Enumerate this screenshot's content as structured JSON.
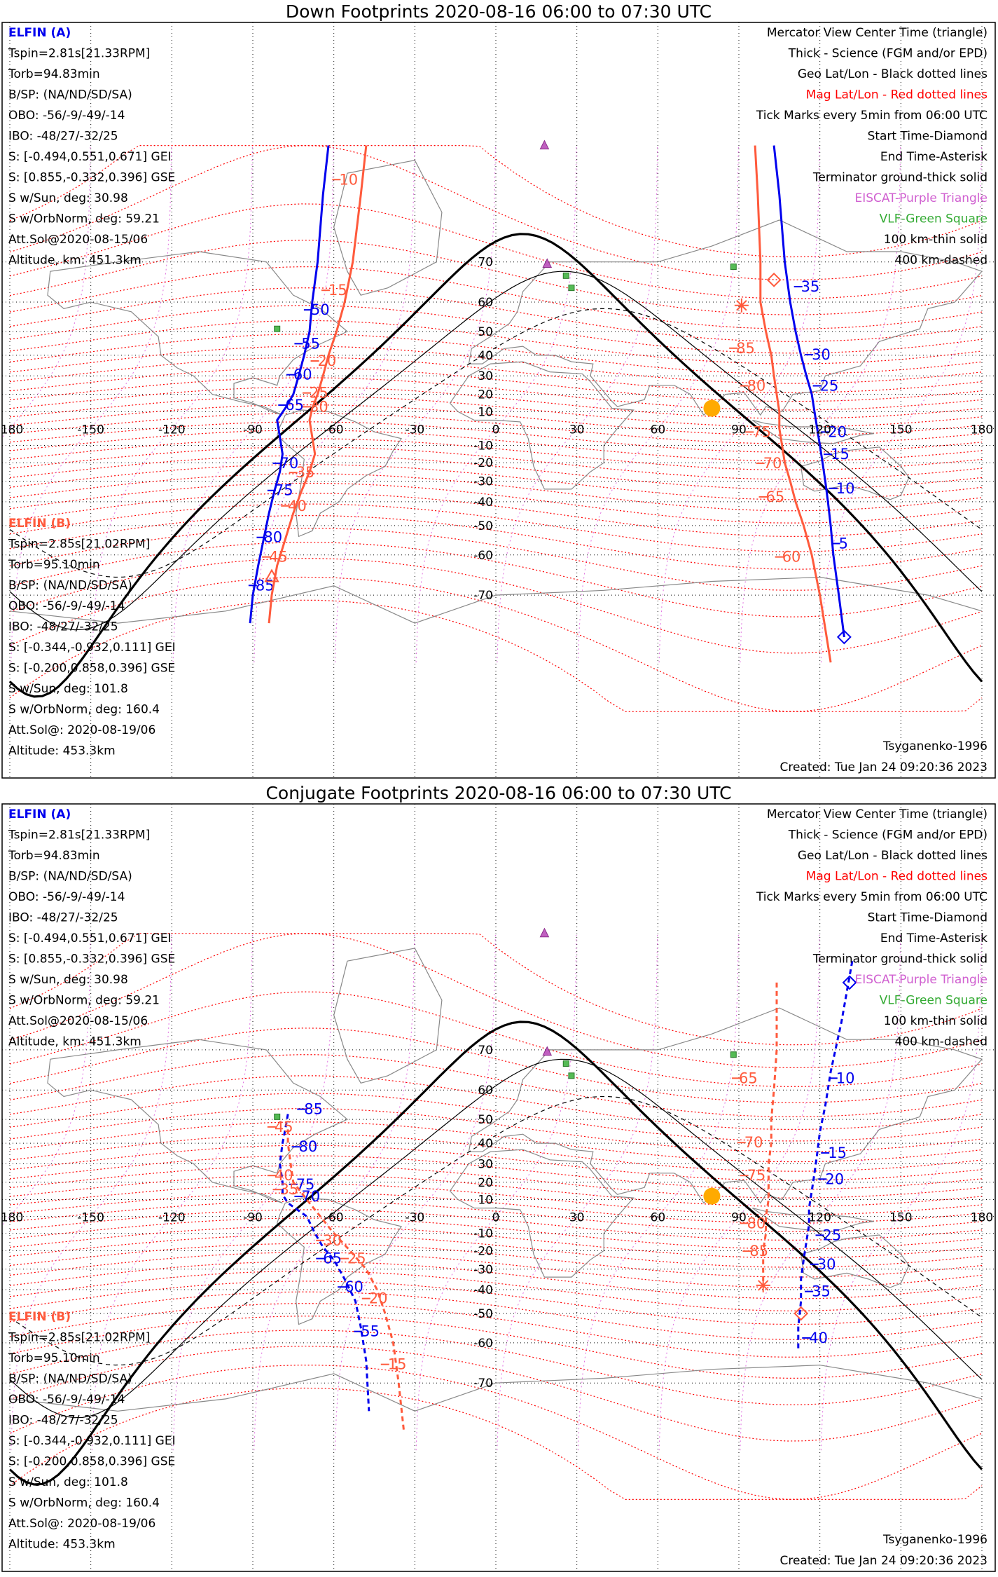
{
  "colors": {
    "elfin_a": "#0000ee",
    "elfin_b": "#ff5a3c",
    "mag_grid": "#ff0000",
    "geo_grid": "#000000",
    "eiscat": "#c060c0",
    "vlf": "#33aa33",
    "vlf_fill": "#55bb55",
    "sun": "#ffaa00",
    "coast": "#888888",
    "terminator": "#000000"
  },
  "legend": {
    "line1": "Mercator View Center Time (triangle)",
    "line2": "Thick - Science (FGM and/or EPD)",
    "line3": "Geo Lat/Lon - Black dotted lines",
    "line4": "Mag Lat/Lon - Red dotted lines",
    "line5": "Tick Marks every 5min from 06:00 UTC",
    "line6": "Start Time-Diamond",
    "line7": "End Time-Asterisk",
    "line8": "Terminator ground-thick solid",
    "line9": "EISCAT-Purple Triangle",
    "line10": "VLF-Green Square",
    "line11": "100 km-thin solid",
    "line12": "400 km-dashed"
  },
  "elfin_a": {
    "name": "ELFIN (A)",
    "tspin": "Tspin=2.81s[21.33RPM]",
    "torb": "Torb=94.83min",
    "bsp": "B/SP: (NA/ND/SD/SA)",
    "obo": "OBO: -56/-9/-49/-14",
    "ibo": "IBO: -48/27/-32/25",
    "s_gei": "S: [-0.494,0.551,0.671] GEI",
    "s_gse": "S: [0.855,-0.332,0.396] GSE",
    "s_sun": "S w/Sun, deg: 30.98",
    "s_orb": "S w/OrbNorm, deg: 59.21",
    "att": "Att.Sol@2020-08-15/06",
    "alt": "Altitude, km: 451.3km"
  },
  "elfin_b": {
    "name": "ELFIN (B)",
    "tspin": "Tspin=2.85s[21.02RPM]",
    "torb": "Torb=95.10min",
    "bsp": "B/SP: (NA/ND/SD/SA)",
    "obo": "OBO: -56/-9/-49/-14",
    "ibo": "IBO: -48/27/-32/25",
    "s_gei": "S: [-0.344,-0.932,0.111] GEI",
    "s_gse": "S: [-0.200,0.858,0.396] GSE",
    "s_sun": "S w/Sun, deg: 101.8",
    "s_orb": "S w/OrbNorm, deg: 160.4",
    "att": "Att.Sol@: 2020-08-19/06",
    "alt": "Altitude: 453.3km"
  },
  "footer": {
    "model": "Tsyganenko-1996",
    "created": "Created: Tue Jan 24 09:20:36 2023"
  },
  "axes": {
    "lon_ticks": [
      -180,
      -150,
      -120,
      -90,
      -60,
      -30,
      0,
      30,
      60,
      90,
      120,
      150,
      180
    ],
    "lat_ticks": [
      70,
      60,
      50,
      40,
      30,
      20,
      10,
      -10,
      -20,
      -30,
      -40,
      -50,
      -60,
      -70
    ],
    "lon_labels": [
      "-180",
      "-150",
      "-120",
      "-90",
      "-60",
      "-30",
      "0",
      "30",
      "60",
      "90",
      "120",
      "150",
      "180"
    ],
    "lat_labels": [
      "70",
      "60",
      "50",
      "40",
      "30",
      "20",
      "10",
      "-10",
      "-20",
      "-30",
      "-40",
      "-50",
      "-60",
      "-70"
    ]
  },
  "sun": {
    "lon": 80,
    "lat": 12
  },
  "eiscat": [
    {
      "lon": 19,
      "lat": 69.6
    },
    {
      "lon": 18,
      "lat": 90
    }
  ],
  "vlf": [
    {
      "lon": 26,
      "lat": 67
    },
    {
      "lon": 28,
      "lat": 64
    },
    {
      "lon": 88,
      "lat": 69
    },
    {
      "lon": -81,
      "lat": 51
    }
  ],
  "panels": [
    {
      "title": "Down Footprints 2020-08-16 06:00 to 07:30 UTC",
      "track_a": {
        "points": [
          [
            -62,
            86
          ],
          [
            -64,
            80
          ],
          [
            -66,
            70
          ],
          [
            -68,
            60
          ],
          [
            -69,
            50
          ],
          [
            -71,
            40
          ],
          [
            -73,
            30
          ],
          [
            -75,
            20
          ],
          [
            -78,
            12
          ],
          [
            -81,
            5
          ],
          [
            -80,
            -5
          ],
          [
            -79,
            -15
          ],
          [
            -80,
            -25
          ],
          [
            -82,
            -35
          ],
          [
            -84,
            -45
          ],
          [
            -86,
            -55
          ],
          [
            -88,
            -63
          ],
          [
            -90,
            -70
          ],
          [
            -91,
            -75
          ]
        ],
        "labels": [
          {
            "text": "50",
            "lon": -68.5,
            "lat": 56
          },
          {
            "text": "55",
            "lon": -72,
            "lat": 43
          },
          {
            "text": "60",
            "lon": -75,
            "lat": 28
          },
          {
            "text": "65",
            "lon": -78,
            "lat": 11
          },
          {
            "text": "70",
            "lon": -80,
            "lat": -23
          },
          {
            "text": "75",
            "lon": -82,
            "lat": -37
          },
          {
            "text": "80",
            "lon": -86,
            "lat": -56
          },
          {
            "text": "85",
            "lon": -89,
            "lat": -69
          }
        ]
      },
      "track_b": {
        "points": [
          [
            -48,
            86
          ],
          [
            -50,
            80
          ],
          [
            -53,
            70
          ],
          [
            -56,
            60
          ],
          [
            -59,
            50
          ],
          [
            -62,
            40
          ],
          [
            -64,
            30
          ],
          [
            -66,
            20
          ],
          [
            -68,
            12
          ],
          [
            -69,
            5
          ],
          [
            -68,
            -5
          ],
          [
            -67,
            -15
          ],
          [
            -69,
            -25
          ],
          [
            -72,
            -35
          ],
          [
            -75,
            -45
          ],
          [
            -78,
            -55
          ],
          [
            -81,
            -63
          ],
          [
            -83,
            -70
          ],
          [
            -84,
            -75
          ]
        ],
        "labels": [
          {
            "text": "10",
            "lon": -58,
            "lat": 81
          },
          {
            "text": "15",
            "lon": -62,
            "lat": 62
          },
          {
            "text": "20",
            "lon": -66,
            "lat": 35
          },
          {
            "text": "25",
            "lon": -69,
            "lat": 18
          },
          {
            "text": "30",
            "lon": -69,
            "lat": 10
          },
          {
            "text": "35",
            "lon": -74,
            "lat": -28
          },
          {
            "text": "40",
            "lon": -77,
            "lat": -44
          },
          {
            "text": "45",
            "lon": -84,
            "lat": -62
          }
        ]
      },
      "track_c": {
        "points": [
          [
            103,
            86
          ],
          [
            105,
            80
          ],
          [
            107,
            70
          ],
          [
            109,
            60
          ],
          [
            111,
            50
          ],
          [
            113,
            40
          ],
          [
            115,
            30
          ],
          [
            117,
            20
          ],
          [
            118,
            10
          ],
          [
            119,
            0
          ],
          [
            120,
            -10
          ],
          [
            121,
            -20
          ],
          [
            122,
            -30
          ],
          [
            123,
            -40
          ],
          [
            124,
            -50
          ],
          [
            125,
            -60
          ],
          [
            127,
            -70
          ],
          [
            129,
            -77
          ]
        ],
        "labels": [
          {
            "text": "35",
            "lon": 113,
            "lat": 63
          },
          {
            "text": "30",
            "lon": 117,
            "lat": 38
          },
          {
            "text": "25",
            "lon": 120,
            "lat": 22
          },
          {
            "text": "20",
            "lon": 123,
            "lat": -5
          },
          {
            "text": "15",
            "lon": 124,
            "lat": -18
          },
          {
            "text": "10",
            "lon": 126,
            "lat": -36
          },
          {
            "text": "5",
            "lon": 127,
            "lat": -58
          }
        ]
      },
      "track_d": {
        "points": [
          [
            96,
            86
          ],
          [
            97,
            80
          ],
          [
            98,
            70
          ],
          [
            98,
            60
          ],
          [
            100,
            50
          ],
          [
            102,
            40
          ],
          [
            103,
            30
          ],
          [
            104,
            20
          ],
          [
            105,
            10
          ],
          [
            105,
            0
          ],
          [
            106,
            -10
          ],
          [
            107,
            -20
          ],
          [
            109,
            -30
          ],
          [
            111,
            -40
          ],
          [
            114,
            -50
          ],
          [
            117,
            -60
          ],
          [
            120,
            -70
          ],
          [
            124,
            -80
          ]
        ],
        "labels": [
          {
            "text": "85",
            "lon": 89,
            "lat": 41
          },
          {
            "text": "80",
            "lon": 93,
            "lat": 22
          },
          {
            "text": "75",
            "lon": 95,
            "lat": -5
          },
          {
            "text": "70",
            "lon": 99,
            "lat": -23
          },
          {
            "text": "65",
            "lon": 100,
            "lat": -40
          },
          {
            "text": "60",
            "lon": 106,
            "lat": -62
          }
        ]
      },
      "dashed": false
    },
    {
      "title": "Conjugate Footprints 2020-08-16 06:00 to 07:30 UTC",
      "track_a": {
        "points": [
          [
            -77,
            52
          ],
          [
            -78,
            46
          ],
          [
            -79,
            40
          ],
          [
            -80,
            30
          ],
          [
            -79,
            20
          ],
          [
            -79,
            13
          ],
          [
            -77,
            8
          ],
          [
            -70,
            0
          ],
          [
            -67,
            -10
          ],
          [
            -64,
            -18
          ],
          [
            -60,
            -25
          ],
          [
            -56,
            -35
          ],
          [
            -52,
            -45
          ],
          [
            -50,
            -55
          ],
          [
            -48,
            -65
          ],
          [
            -47,
            -75
          ]
        ],
        "labels": [
          {
            "text": "85",
            "lon": -71,
            "lat": 52
          },
          {
            "text": "80",
            "lon": -73,
            "lat": 36
          },
          {
            "text": "75",
            "lon": -74,
            "lat": 16
          },
          {
            "text": "70",
            "lon": -72,
            "lat": 9
          },
          {
            "text": "65",
            "lon": -64,
            "lat": -27
          },
          {
            "text": "60",
            "lon": -56,
            "lat": -41
          },
          {
            "text": "55",
            "lon": -50,
            "lat": -58
          }
        ]
      },
      "track_b": {
        "points": [
          [
            -77,
            46
          ],
          [
            -77,
            40
          ],
          [
            -76,
            30
          ],
          [
            -75,
            20
          ],
          [
            -70,
            10
          ],
          [
            -65,
            0
          ],
          [
            -60,
            -10
          ],
          [
            -54,
            -20
          ],
          [
            -48,
            -30
          ],
          [
            -44,
            -40
          ],
          [
            -41,
            -50
          ],
          [
            -38,
            -60
          ],
          [
            -36,
            -70
          ],
          [
            -34,
            -78
          ]
        ],
        "labels": [
          {
            "text": "45",
            "lon": -82,
            "lat": 45
          },
          {
            "text": "40",
            "lon": -82,
            "lat": 21
          },
          {
            "text": "35",
            "lon": -80,
            "lat": 13
          },
          {
            "text": "30",
            "lon": -64,
            "lat": -17
          },
          {
            "text": "25",
            "lon": -55,
            "lat": -27
          },
          {
            "text": "20",
            "lon": -47,
            "lat": -46
          },
          {
            "text": "15",
            "lon": -40,
            "lat": -67
          }
        ]
      },
      "track_c": {
        "points": [
          [
            132,
            82
          ],
          [
            128,
            75
          ],
          [
            124,
            65
          ],
          [
            122,
            55
          ],
          [
            120,
            45
          ],
          [
            119,
            35
          ],
          [
            118,
            25
          ],
          [
            117,
            15
          ],
          [
            116,
            5
          ],
          [
            116,
            -5
          ],
          [
            115,
            -15
          ],
          [
            114,
            -25
          ],
          [
            113,
            -35
          ],
          [
            113,
            -45
          ],
          [
            112,
            -55
          ],
          [
            112,
            -62
          ]
        ],
        "labels": [
          {
            "text": "10",
            "lon": 126,
            "lat": 62
          },
          {
            "text": "15",
            "lon": 123,
            "lat": 33
          },
          {
            "text": "20",
            "lon": 122,
            "lat": 19
          },
          {
            "text": "25",
            "lon": 121,
            "lat": -14
          },
          {
            "text": "30",
            "lon": 119,
            "lat": -30
          },
          {
            "text": "35",
            "lon": 117,
            "lat": -43
          },
          {
            "text": "40",
            "lon": 116,
            "lat": -60
          }
        ]
      },
      "track_d": {
        "points": [
          [
            104,
            80
          ],
          [
            104,
            70
          ],
          [
            103,
            60
          ],
          [
            102,
            50
          ],
          [
            102,
            40
          ],
          [
            101,
            30
          ],
          [
            101,
            20
          ],
          [
            101,
            10
          ],
          [
            100,
            0
          ],
          [
            100,
            -10
          ],
          [
            99,
            -20
          ],
          [
            99,
            -30
          ],
          [
            99,
            -38
          ]
        ],
        "labels": [
          {
            "text": "65",
            "lon": 90,
            "lat": 62
          },
          {
            "text": "70",
            "lon": 92,
            "lat": 38
          },
          {
            "text": "75",
            "lon": 93,
            "lat": 21
          },
          {
            "text": "80",
            "lon": 93,
            "lat": -7
          },
          {
            "text": "85",
            "lon": 94,
            "lat": -23
          }
        ]
      },
      "dashed": true
    }
  ]
}
